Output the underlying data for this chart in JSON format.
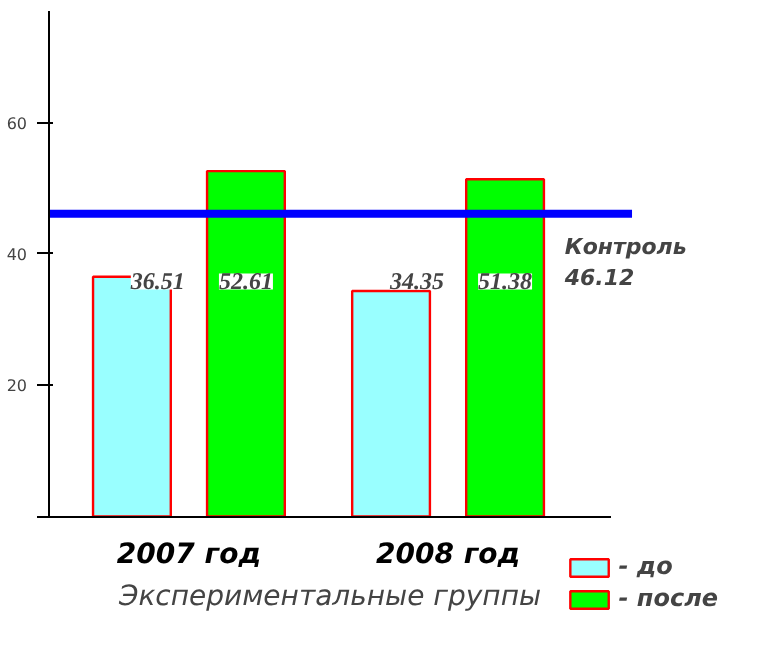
{
  "chart_data": {
    "type": "bar",
    "categories": [
      "2007 год",
      "2008 год"
    ],
    "series": [
      {
        "name": "- до",
        "color": "#99ffff",
        "values": [
          36.51,
          34.35
        ]
      },
      {
        "name": "- после",
        "color": "#00ff00",
        "values": [
          52.61,
          51.38
        ]
      }
    ],
    "xlabel": "Экспериментальные группы",
    "ylim": [
      0,
      77
    ],
    "yticks": [
      {
        "value": 0,
        "label": null
      },
      20,
      40,
      60
    ],
    "ref_lines": [
      {
        "axis": "y",
        "value": 46.12,
        "label": "Контроль\n46.12",
        "color": "#0000ff"
      }
    ],
    "data_labels": true,
    "grid": false,
    "legend": "bottom right"
  }
}
